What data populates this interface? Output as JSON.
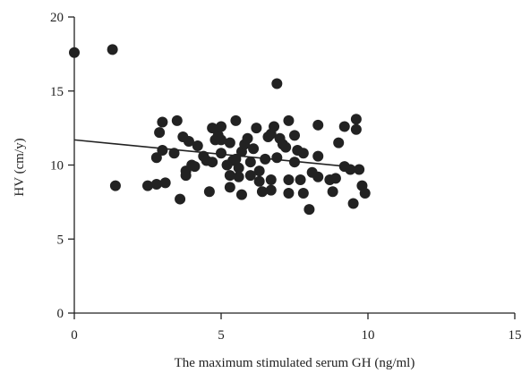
{
  "chart_data": {
    "type": "scatter",
    "title": "",
    "xlabel": "The maximum stimulated serum GH (ng/ml)",
    "ylabel": "HV (cm/y)",
    "xlim": [
      0,
      15
    ],
    "ylim": [
      0,
      20
    ],
    "xticks": [
      0,
      5,
      10,
      15
    ],
    "yticks": [
      0,
      5,
      10,
      15,
      20
    ],
    "x_tick_labels": [
      "0",
      "5",
      "10",
      "15"
    ],
    "y_tick_labels": [
      "0",
      "5",
      "10",
      "15",
      "20"
    ],
    "grid": false,
    "legend": "none",
    "point_color": "#222222",
    "line_color": "#222222",
    "series": [
      {
        "points": [
          [
            0.0,
            17.6
          ],
          [
            1.3,
            17.8
          ],
          [
            1.4,
            8.6
          ],
          [
            2.5,
            8.6
          ],
          [
            2.8,
            8.7
          ],
          [
            2.8,
            10.5
          ],
          [
            2.9,
            12.2
          ],
          [
            3.0,
            12.9
          ],
          [
            3.0,
            11.0
          ],
          [
            3.1,
            8.8
          ],
          [
            3.4,
            10.8
          ],
          [
            3.5,
            13.0
          ],
          [
            3.6,
            7.7
          ],
          [
            3.7,
            11.9
          ],
          [
            3.8,
            9.6
          ],
          [
            3.8,
            9.3
          ],
          [
            3.9,
            11.6
          ],
          [
            4.0,
            10.0
          ],
          [
            4.1,
            9.9
          ],
          [
            4.2,
            11.3
          ],
          [
            4.4,
            10.6
          ],
          [
            4.5,
            10.3
          ],
          [
            4.6,
            8.2
          ],
          [
            4.7,
            10.2
          ],
          [
            4.7,
            12.5
          ],
          [
            4.8,
            11.7
          ],
          [
            4.9,
            12.0
          ],
          [
            5.0,
            12.6
          ],
          [
            5.0,
            11.7
          ],
          [
            5.0,
            10.8
          ],
          [
            5.2,
            10.0
          ],
          [
            5.3,
            11.5
          ],
          [
            5.3,
            9.3
          ],
          [
            5.3,
            8.5
          ],
          [
            5.4,
            10.3
          ],
          [
            5.5,
            13.0
          ],
          [
            5.5,
            10.4
          ],
          [
            5.6,
            9.8
          ],
          [
            5.6,
            9.2
          ],
          [
            5.7,
            10.9
          ],
          [
            5.7,
            8.0
          ],
          [
            5.8,
            11.4
          ],
          [
            5.9,
            11.8
          ],
          [
            6.0,
            10.2
          ],
          [
            6.0,
            9.3
          ],
          [
            6.1,
            11.1
          ],
          [
            6.2,
            12.5
          ],
          [
            6.3,
            9.6
          ],
          [
            6.3,
            8.9
          ],
          [
            6.4,
            8.2
          ],
          [
            6.5,
            10.4
          ],
          [
            6.6,
            11.9
          ],
          [
            6.7,
            12.1
          ],
          [
            6.7,
            9.0
          ],
          [
            6.7,
            8.3
          ],
          [
            6.8,
            12.6
          ],
          [
            6.9,
            15.5
          ],
          [
            6.9,
            10.5
          ],
          [
            7.0,
            11.8
          ],
          [
            7.1,
            11.4
          ],
          [
            7.2,
            11.2
          ],
          [
            7.3,
            13.0
          ],
          [
            7.3,
            9.0
          ],
          [
            7.3,
            8.1
          ],
          [
            7.5,
            12.0
          ],
          [
            7.5,
            10.2
          ],
          [
            7.6,
            11.0
          ],
          [
            7.7,
            9.0
          ],
          [
            7.8,
            10.8
          ],
          [
            7.8,
            8.1
          ],
          [
            8.0,
            7.0
          ],
          [
            8.1,
            9.5
          ],
          [
            8.3,
            12.7
          ],
          [
            8.3,
            9.2
          ],
          [
            8.3,
            10.6
          ],
          [
            8.7,
            9.0
          ],
          [
            8.8,
            8.2
          ],
          [
            8.9,
            9.1
          ],
          [
            9.0,
            11.5
          ],
          [
            9.2,
            12.6
          ],
          [
            9.2,
            9.9
          ],
          [
            9.4,
            9.7
          ],
          [
            9.5,
            7.4
          ],
          [
            9.6,
            13.1
          ],
          [
            9.6,
            12.4
          ],
          [
            9.7,
            9.7
          ],
          [
            9.8,
            8.6
          ],
          [
            9.9,
            8.1
          ]
        ]
      }
    ],
    "regression_line": {
      "x": [
        0,
        9.3
      ],
      "y": [
        11.7,
        9.9
      ]
    }
  }
}
